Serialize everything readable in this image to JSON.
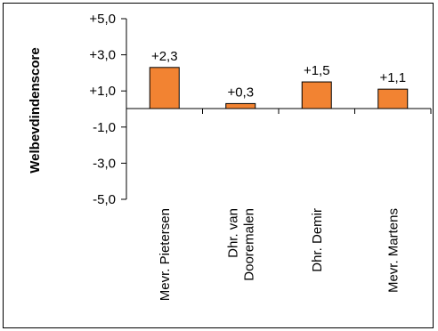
{
  "chart_data": {
    "type": "bar",
    "title": "",
    "xlabel": "",
    "ylabel": "Welbevdindenscore",
    "ylim": [
      -5,
      5
    ],
    "yticks": [
      5,
      3,
      1,
      -1,
      -3,
      -5
    ],
    "ytick_labels": [
      "+5,0",
      "+3,0",
      "+1,0",
      "-1,0",
      "-3,0",
      "-5,0"
    ],
    "categories": [
      [
        "Mevr. Pietersen"
      ],
      [
        "Dhr. van",
        "Dooremalen"
      ],
      [
        "Dhr. Demir"
      ],
      [
        "Mevr. Martens"
      ]
    ],
    "values": [
      2.3,
      0.3,
      1.5,
      1.1
    ],
    "value_labels": [
      "+2,3",
      "+0,3",
      "+1,5",
      "+1,1"
    ],
    "bar_color": "#f28332",
    "grid": false,
    "legend": "none"
  }
}
